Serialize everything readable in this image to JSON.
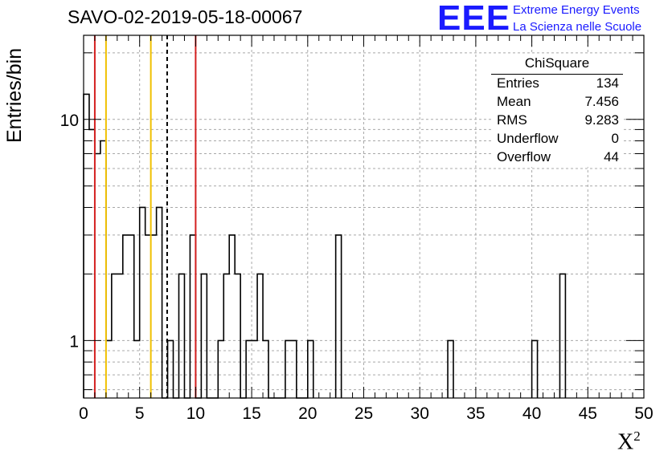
{
  "title": "SAVO-02-2019-05-18-00067",
  "logo": {
    "mark": "EEE",
    "line1": "Extreme Energy Events",
    "line2": "La Scienza nelle Scuole",
    "color": "#1a1aff"
  },
  "stats": {
    "title": "ChiSquare",
    "rows": [
      {
        "label": "Entries",
        "value": "134"
      },
      {
        "label": "Mean",
        "value": "7.456"
      },
      {
        "label": "RMS",
        "value": "9.283"
      },
      {
        "label": "Underflow",
        "value": "0"
      },
      {
        "label": "Overflow",
        "value": "44"
      }
    ]
  },
  "chart_data": {
    "type": "histogram",
    "title": "SAVO-02-2019-05-18-00067",
    "xlabel": "X",
    "xlabel_superscript": "2",
    "ylabel": "Entries/bin",
    "xlim": [
      0,
      50
    ],
    "ylim_log": [
      0.55,
      24
    ],
    "yscale": "log",
    "grid": true,
    "bin_width": 0.5,
    "bins": [
      {
        "x0": 0.0,
        "count": 13
      },
      {
        "x0": 0.5,
        "count": 9
      },
      {
        "x0": 1.0,
        "count": 7
      },
      {
        "x0": 1.5,
        "count": 8
      },
      {
        "x0": 2.0,
        "count": 1
      },
      {
        "x0": 2.5,
        "count": 2
      },
      {
        "x0": 3.0,
        "count": 2
      },
      {
        "x0": 3.5,
        "count": 3
      },
      {
        "x0": 4.0,
        "count": 3
      },
      {
        "x0": 4.5,
        "count": 1
      },
      {
        "x0": 5.0,
        "count": 4
      },
      {
        "x0": 5.5,
        "count": 3
      },
      {
        "x0": 6.0,
        "count": 3
      },
      {
        "x0": 6.5,
        "count": 4
      },
      {
        "x0": 7.0,
        "count": 0
      },
      {
        "x0": 7.5,
        "count": 1
      },
      {
        "x0": 8.0,
        "count": 0
      },
      {
        "x0": 8.5,
        "count": 2
      },
      {
        "x0": 9.0,
        "count": 0
      },
      {
        "x0": 9.5,
        "count": 3
      },
      {
        "x0": 10.0,
        "count": 0
      },
      {
        "x0": 10.5,
        "count": 2
      },
      {
        "x0": 11.0,
        "count": 0
      },
      {
        "x0": 11.5,
        "count": 0
      },
      {
        "x0": 12.0,
        "count": 1
      },
      {
        "x0": 12.5,
        "count": 2
      },
      {
        "x0": 13.0,
        "count": 3
      },
      {
        "x0": 13.5,
        "count": 2
      },
      {
        "x0": 14.0,
        "count": 0
      },
      {
        "x0": 14.5,
        "count": 1
      },
      {
        "x0": 15.0,
        "count": 1
      },
      {
        "x0": 15.5,
        "count": 2
      },
      {
        "x0": 16.0,
        "count": 1
      },
      {
        "x0": 16.5,
        "count": 0
      },
      {
        "x0": 17.0,
        "count": 0
      },
      {
        "x0": 17.5,
        "count": 0
      },
      {
        "x0": 18.0,
        "count": 1
      },
      {
        "x0": 18.5,
        "count": 1
      },
      {
        "x0": 19.0,
        "count": 0
      },
      {
        "x0": 19.5,
        "count": 0
      },
      {
        "x0": 20.0,
        "count": 1
      },
      {
        "x0": 22.5,
        "count": 3
      },
      {
        "x0": 32.5,
        "count": 1
      },
      {
        "x0": 40.0,
        "count": 1
      },
      {
        "x0": 42.5,
        "count": 2
      }
    ],
    "vertical_lines": [
      {
        "x": 1.0,
        "color": "#d42020",
        "style": "solid"
      },
      {
        "x": 2.0,
        "color": "#f0c000",
        "style": "solid"
      },
      {
        "x": 6.0,
        "color": "#f0c000",
        "style": "solid"
      },
      {
        "x": 7.456,
        "color": "#000000",
        "style": "dashed"
      },
      {
        "x": 10.0,
        "color": "#d42020",
        "style": "solid"
      }
    ],
    "xticks": [
      0,
      5,
      10,
      15,
      20,
      25,
      30,
      35,
      40,
      45,
      50
    ],
    "xtick_labels": [
      "0",
      "5",
      "10",
      "15",
      "20",
      "25",
      "30",
      "35",
      "40",
      "45",
      "50"
    ],
    "yticks": [
      1,
      10
    ],
    "ytick_labels": [
      "1",
      "10"
    ]
  }
}
